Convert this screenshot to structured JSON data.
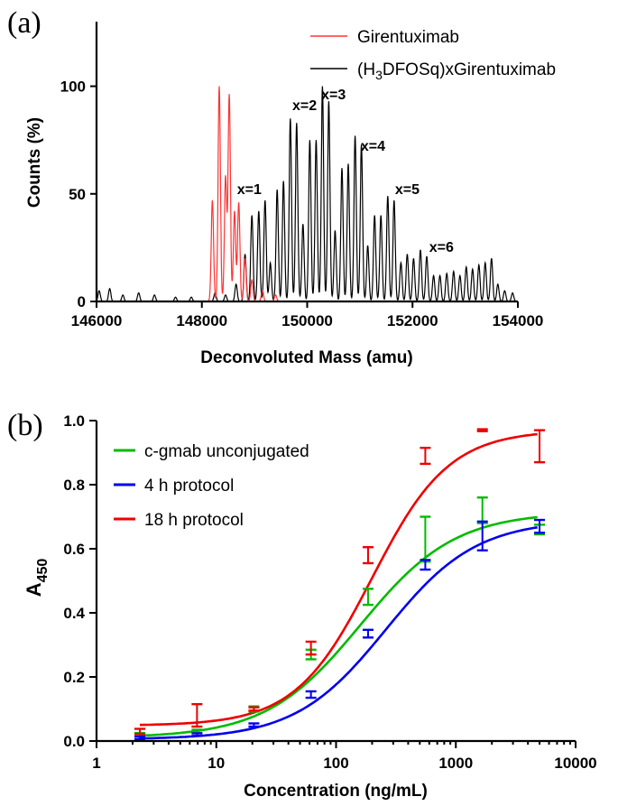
{
  "chart_data": [
    {
      "panel_label": "(a)",
      "type": "line",
      "xlabel": "Deconvoluted Mass (amu)",
      "ylabel": "Counts (%)",
      "xlim": [
        146000,
        154000
      ],
      "ylim": [
        0,
        130
      ],
      "xticks": [
        146000,
        148000,
        150000,
        152000,
        154000
      ],
      "xtick_labels": [
        "146000",
        "148000",
        "150000",
        "152000",
        "154000"
      ],
      "yticks": [
        0,
        50,
        100
      ],
      "ytick_labels": [
        "0",
        "50",
        "100"
      ],
      "legend": {
        "placement": "top-right",
        "entries": [
          {
            "color": "#ff3333",
            "pre": "Girentuximab",
            "sub": "",
            "post": ""
          },
          {
            "color": "#000000",
            "pre": "(H",
            "sub": "3",
            "post": "DFOSq)xGirentuximab"
          }
        ]
      },
      "annotations": [
        {
          "text": "x=1",
          "mass": 148900,
          "y": 50
        },
        {
          "text": "x=2",
          "mass": 149950,
          "y": 89
        },
        {
          "text": "x=3",
          "mass": 150500,
          "y": 94
        },
        {
          "text": "x=4",
          "mass": 151250,
          "y": 70
        },
        {
          "text": "x=5",
          "mass": 151900,
          "y": 50
        },
        {
          "text": "x=6",
          "mass": 152550,
          "y": 23
        }
      ],
      "series": [
        {
          "name": "Girentuximab",
          "color": "#ff3333",
          "peaks": [
            {
              "mass": 148200,
              "height": 47
            },
            {
              "mass": 148330,
              "height": 100
            },
            {
              "mass": 148450,
              "height": 58
            },
            {
              "mass": 148520,
              "height": 96
            },
            {
              "mass": 148620,
              "height": 42
            },
            {
              "mass": 148700,
              "height": 46
            },
            {
              "mass": 148820,
              "height": 20
            },
            {
              "mass": 148950,
              "height": 10
            },
            {
              "mass": 149150,
              "height": 5
            },
            {
              "mass": 149400,
              "height": 3
            }
          ]
        },
        {
          "name": "(H3DFOSq)xGirentuximab",
          "color": "#000000",
          "peaks": [
            {
              "mass": 146050,
              "height": 5
            },
            {
              "mass": 146250,
              "height": 6
            },
            {
              "mass": 146500,
              "height": 3
            },
            {
              "mass": 146800,
              "height": 4
            },
            {
              "mass": 147100,
              "height": 3
            },
            {
              "mass": 147500,
              "height": 2
            },
            {
              "mass": 147800,
              "height": 2
            },
            {
              "mass": 148250,
              "height": 4
            },
            {
              "mass": 148450,
              "height": 3
            },
            {
              "mass": 148650,
              "height": 8
            },
            {
              "mass": 148820,
              "height": 22
            },
            {
              "mass": 148950,
              "height": 40
            },
            {
              "mass": 149080,
              "height": 42
            },
            {
              "mass": 149200,
              "height": 47
            },
            {
              "mass": 149300,
              "height": 18
            },
            {
              "mass": 149430,
              "height": 52
            },
            {
              "mass": 149550,
              "height": 56
            },
            {
              "mass": 149680,
              "height": 85
            },
            {
              "mass": 149800,
              "height": 83
            },
            {
              "mass": 149920,
              "height": 36
            },
            {
              "mass": 150050,
              "height": 75
            },
            {
              "mass": 150170,
              "height": 75
            },
            {
              "mass": 150290,
              "height": 100
            },
            {
              "mass": 150410,
              "height": 93
            },
            {
              "mass": 150530,
              "height": 33
            },
            {
              "mass": 150660,
              "height": 62
            },
            {
              "mass": 150780,
              "height": 64
            },
            {
              "mass": 150910,
              "height": 77
            },
            {
              "mass": 151030,
              "height": 73
            },
            {
              "mass": 151150,
              "height": 26
            },
            {
              "mass": 151280,
              "height": 40
            },
            {
              "mass": 151400,
              "height": 40
            },
            {
              "mass": 151530,
              "height": 49
            },
            {
              "mass": 151650,
              "height": 47
            },
            {
              "mass": 151780,
              "height": 18
            },
            {
              "mass": 151900,
              "height": 22
            },
            {
              "mass": 152020,
              "height": 20
            },
            {
              "mass": 152150,
              "height": 24
            },
            {
              "mass": 152270,
              "height": 21
            },
            {
              "mass": 152400,
              "height": 12
            },
            {
              "mass": 152520,
              "height": 12
            },
            {
              "mass": 152650,
              "height": 13
            },
            {
              "mass": 152780,
              "height": 14
            },
            {
              "mass": 152900,
              "height": 12
            },
            {
              "mass": 153020,
              "height": 16
            },
            {
              "mass": 153140,
              "height": 15
            },
            {
              "mass": 153260,
              "height": 17
            },
            {
              "mass": 153380,
              "height": 18
            },
            {
              "mass": 153500,
              "height": 20
            },
            {
              "mass": 153620,
              "height": 8
            },
            {
              "mass": 153750,
              "height": 5
            },
            {
              "mass": 153900,
              "height": 4
            }
          ]
        }
      ]
    },
    {
      "panel_label": "(b)",
      "type": "scatter",
      "xscale": "log",
      "xlabel": "Concentration (ng/mL)",
      "ylabel_main": "A",
      "ylabel_sub": "450",
      "xlim": [
        1,
        10000
      ],
      "ylim": [
        0,
        1.0
      ],
      "xticks": [
        1,
        10,
        100,
        1000,
        10000
      ],
      "xtick_labels": [
        "1",
        "10",
        "100",
        "1000",
        "10000"
      ],
      "yticks": [
        0.0,
        0.2,
        0.4,
        0.6,
        0.8,
        1.0
      ],
      "ytick_labels": [
        "0.0",
        "0.2",
        "0.4",
        "0.6",
        "0.8",
        "1.0"
      ],
      "x": [
        2.3,
        6.9,
        20.6,
        61.7,
        185,
        556,
        1667,
        5000
      ],
      "legend": {
        "placement": "top-left",
        "entries": [
          {
            "color": "#00bb00",
            "label": "c-gmab unconjugated"
          },
          {
            "color": "#0000ee",
            "label": "4 h protocol"
          },
          {
            "color": "#ee0000",
            "label": "18 h protocol"
          }
        ]
      },
      "series": [
        {
          "name": "c-gmab unconjugated",
          "color": "#00bb00",
          "values": [
            0.02,
            0.03,
            0.1,
            0.27,
            0.45,
            0.63,
            0.72,
            0.66
          ],
          "errors": [
            0.005,
            0.005,
            0.008,
            0.015,
            0.025,
            0.07,
            0.04,
            0.015
          ],
          "fit": {
            "bottom": 0.01,
            "top": 0.715,
            "ec50": 160,
            "hill": 1.1
          }
        },
        {
          "name": "4 h protocol",
          "color": "#0000ee",
          "values": [
            0.01,
            0.02,
            0.05,
            0.145,
            0.335,
            0.55,
            0.64,
            0.67
          ],
          "errors": [
            0.004,
            0.004,
            0.005,
            0.01,
            0.012,
            0.015,
            0.045,
            0.02
          ],
          "fit": {
            "bottom": 0.005,
            "top": 0.69,
            "ec50": 260,
            "hill": 1.15
          }
        },
        {
          "name": "18 h protocol",
          "color": "#ee0000",
          "values": [
            0.03,
            0.08,
            0.1,
            0.29,
            0.58,
            0.89,
            0.97,
            0.92
          ],
          "errors": [
            0.008,
            0.035,
            0.005,
            0.02,
            0.025,
            0.025,
            0.003,
            0.05
          ],
          "fit": {
            "bottom": 0.048,
            "top": 0.97,
            "ec50": 200,
            "hill": 1.35
          }
        }
      ]
    }
  ]
}
